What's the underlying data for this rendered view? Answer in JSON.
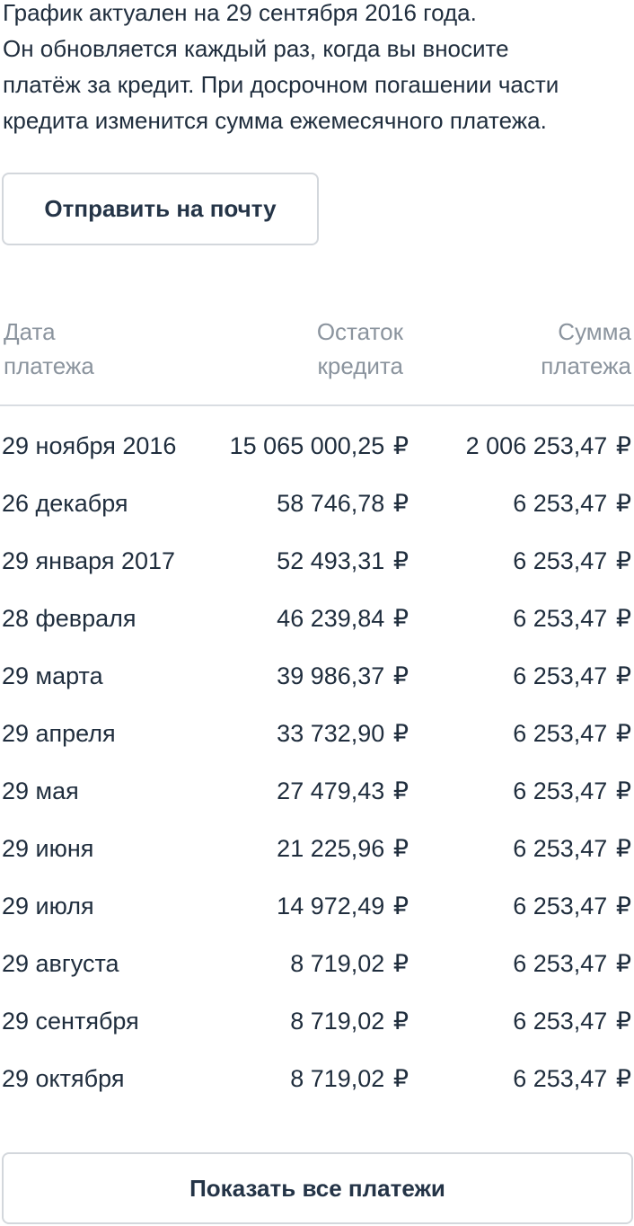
{
  "intro": {
    "lines": [
      "График актуален на 29 сентября 2016 года.",
      "Он обновляется каждый раз, когда вы вносите",
      "платёж за кредит. При досрочном погашении части",
      "кредита изменится сумма ежемесячного платежа."
    ]
  },
  "actions": {
    "email_label": "Отправить на почту",
    "show_all_label": "Показать все платежи"
  },
  "schedule": {
    "currency": "₽",
    "headers": {
      "date": [
        "Дата",
        "платежа"
      ],
      "balance": [
        "Остаток",
        "кредита"
      ],
      "sum": [
        "Сумма",
        "платежа"
      ]
    },
    "rows": [
      {
        "date": "29 ноября 2016",
        "balance": "15 065 000,25",
        "sum": "2 006 253,47"
      },
      {
        "date": "26 декабря",
        "balance": "58 746,78",
        "sum": "6 253,47"
      },
      {
        "date": "29 января 2017",
        "balance": "52 493,31",
        "sum": "6 253,47"
      },
      {
        "date": "28 февраля",
        "balance": "46 239,84",
        "sum": "6 253,47"
      },
      {
        "date": "29 марта",
        "balance": "39 986,37",
        "sum": "6 253,47"
      },
      {
        "date": "29 апреля",
        "balance": "33 732,90",
        "sum": "6 253,47"
      },
      {
        "date": "29 мая",
        "balance": "27 479,43",
        "sum": "6 253,47"
      },
      {
        "date": "29 июня",
        "balance": "21 225,96",
        "sum": "6 253,47"
      },
      {
        "date": "29 июля",
        "balance": "14 972,49",
        "sum": "6 253,47"
      },
      {
        "date": "29 августа",
        "balance": "8 719,02",
        "sum": "6 253,47"
      },
      {
        "date": "29 сентября",
        "balance": "8 719,02",
        "sum": "6 253,47"
      },
      {
        "date": "29 октября",
        "balance": "8 719,02",
        "sum": "6 253,47"
      }
    ]
  }
}
